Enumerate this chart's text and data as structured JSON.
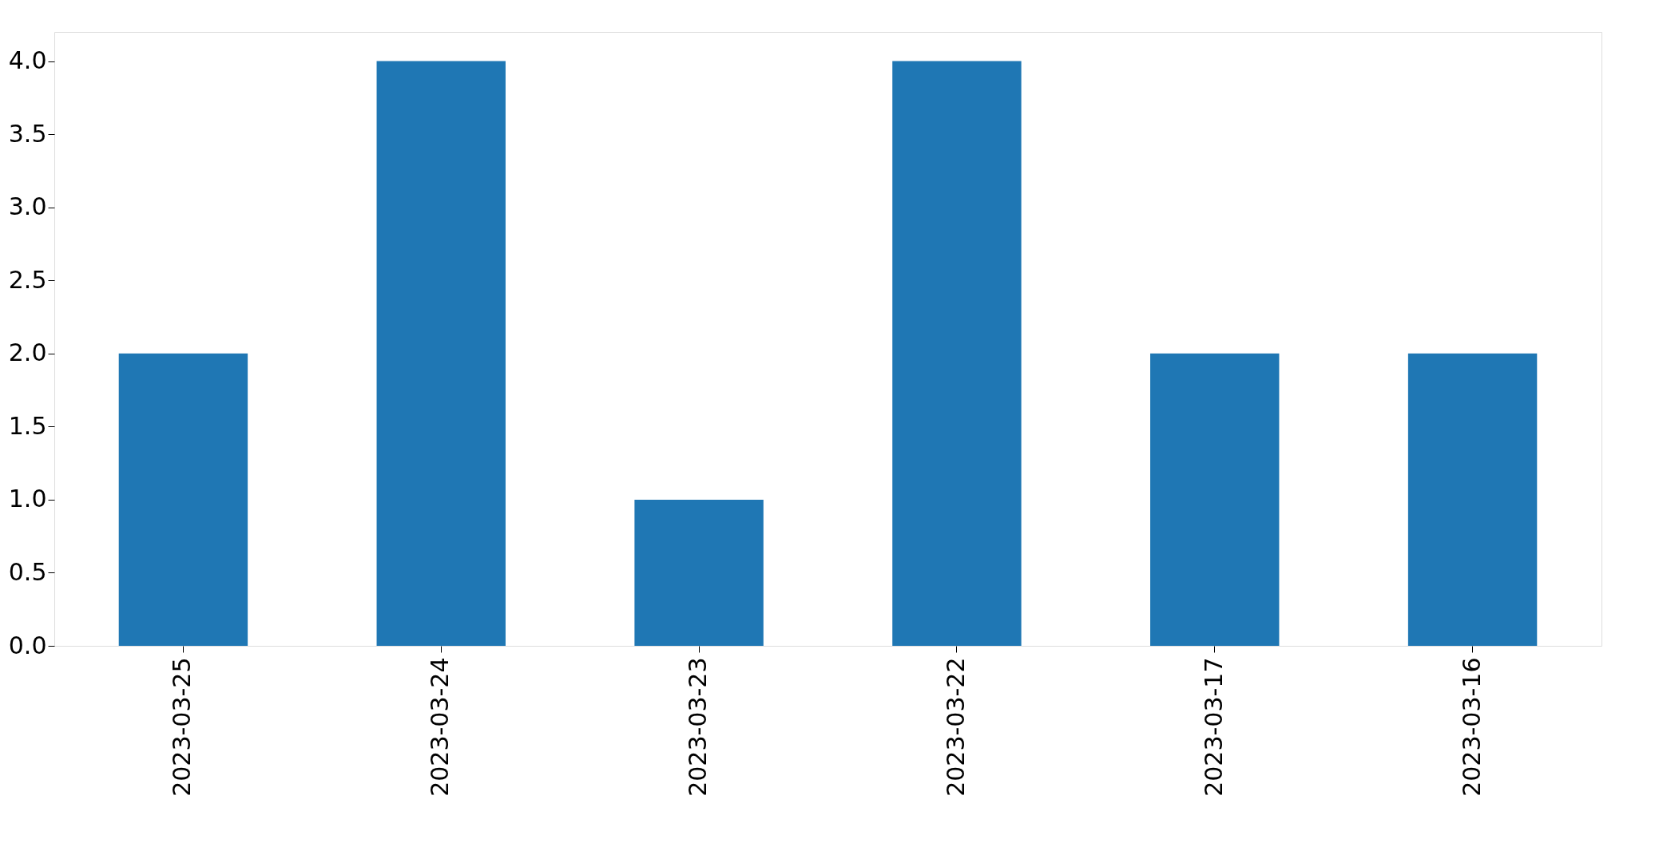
{
  "chart_data": {
    "type": "bar",
    "categories": [
      "2023-03-25",
      "2023-03-24",
      "2023-03-23",
      "2023-03-22",
      "2023-03-17",
      "2023-03-16"
    ],
    "values": [
      2,
      4,
      1,
      4,
      2,
      2
    ],
    "color": "#1f77b4",
    "ylim": [
      0,
      4.2
    ],
    "yticks": [
      {
        "value": 0,
        "label": "0.0"
      },
      {
        "value": 0.5,
        "label": "0.5"
      },
      {
        "value": 1,
        "label": "1.0"
      },
      {
        "value": 1.5,
        "label": "1.5"
      },
      {
        "value": 2,
        "label": "2.0"
      },
      {
        "value": 2.5,
        "label": "2.5"
      },
      {
        "value": 3,
        "label": "3.0"
      },
      {
        "value": 3.5,
        "label": "3.5"
      },
      {
        "value": 4,
        "label": "4.0"
      }
    ],
    "grid": false
  }
}
